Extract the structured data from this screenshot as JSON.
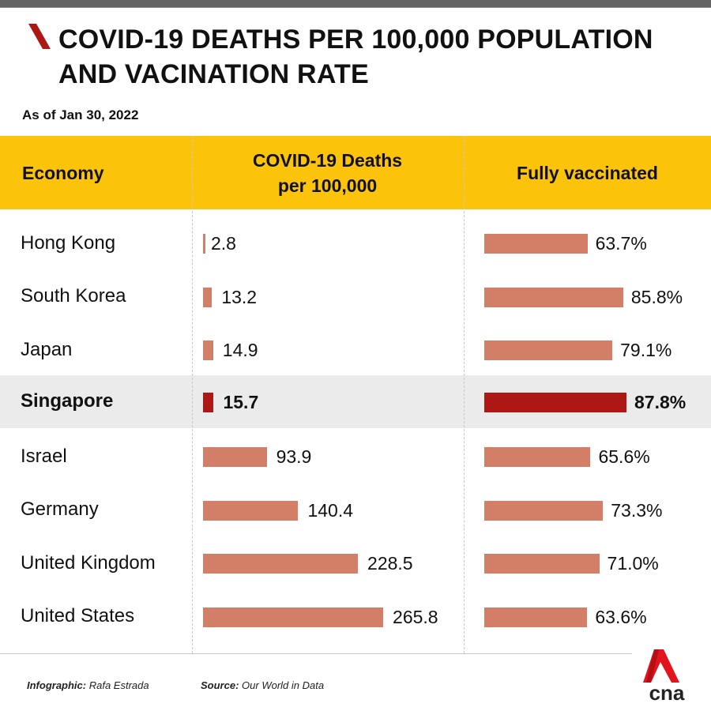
{
  "title": "COVID-19 DEATHS PER 100,000 POPULATION AND VACINATION RATE",
  "subtitle": "As of Jan 30, 2022",
  "colors": {
    "header_bg": "#fcc30b",
    "bar": "#d37e66",
    "bar_highlight": "#ad1714",
    "highlight_row": "#ebebeb",
    "accent": "#ad1714"
  },
  "header": {
    "economy": "Economy",
    "deaths_line1": "COVID-19 Deaths",
    "deaths_line2": "per 100,000",
    "vaccinated": "Fully vaccinated"
  },
  "rows": [
    {
      "country": "Hong Kong",
      "deaths": 2.8,
      "deaths_label": "2.8",
      "vaccinated": 63.7,
      "vaccinated_label": "63.7%",
      "highlight": false
    },
    {
      "country": "South Korea",
      "deaths": 13.2,
      "deaths_label": "13.2",
      "vaccinated": 85.8,
      "vaccinated_label": "85.8%",
      "highlight": false
    },
    {
      "country": "Japan",
      "deaths": 14.9,
      "deaths_label": "14.9",
      "vaccinated": 79.1,
      "vaccinated_label": "79.1%",
      "highlight": false
    },
    {
      "country": "Singapore",
      "deaths": 15.7,
      "deaths_label": "15.7",
      "vaccinated": 87.8,
      "vaccinated_label": "87.8%",
      "highlight": true
    },
    {
      "country": "Israel",
      "deaths": 93.9,
      "deaths_label": "93.9",
      "vaccinated": 65.6,
      "vaccinated_label": "65.6%",
      "highlight": false
    },
    {
      "country": "Germany",
      "deaths": 140.4,
      "deaths_label": "140.4",
      "vaccinated": 73.3,
      "vaccinated_label": "73.3%",
      "highlight": false
    },
    {
      "country": "United Kingdom",
      "deaths": 228.5,
      "deaths_label": "228.5",
      "vaccinated": 71.0,
      "vaccinated_label": "71.0%",
      "highlight": false
    },
    {
      "country": "United States",
      "deaths": 265.8,
      "deaths_label": "265.8",
      "vaccinated": 63.6,
      "vaccinated_label": "63.6%",
      "highlight": false
    }
  ],
  "footer": {
    "infographic_label": "Infographic:",
    "infographic_value": "Rafa Estrada",
    "source_label": "Source:",
    "source_value": "Our World in Data"
  },
  "logo": {
    "text": "cna",
    "icon": "cna-logo-icon"
  },
  "chart_data": {
    "type": "bar",
    "title": "COVID-19 DEATHS PER 100,000 POPULATION AND VACINATION RATE",
    "subtitle": "As of Jan 30, 2022",
    "categories": [
      "Hong Kong",
      "South Korea",
      "Japan",
      "Singapore",
      "Israel",
      "Germany",
      "United Kingdom",
      "United States"
    ],
    "series": [
      {
        "name": "COVID-19 Deaths per 100,000",
        "values": [
          2.8,
          13.2,
          14.9,
          15.7,
          93.9,
          140.4,
          228.5,
          265.8
        ]
      },
      {
        "name": "Fully vaccinated (%)",
        "values": [
          63.7,
          85.8,
          79.1,
          87.8,
          65.6,
          73.3,
          71.0,
          63.6
        ]
      }
    ],
    "orientation": "horizontal",
    "highlighted_category": "Singapore",
    "xlabel": "",
    "ylabel": "Economy",
    "grid": false,
    "legend": "none",
    "source": "Our World in Data"
  }
}
